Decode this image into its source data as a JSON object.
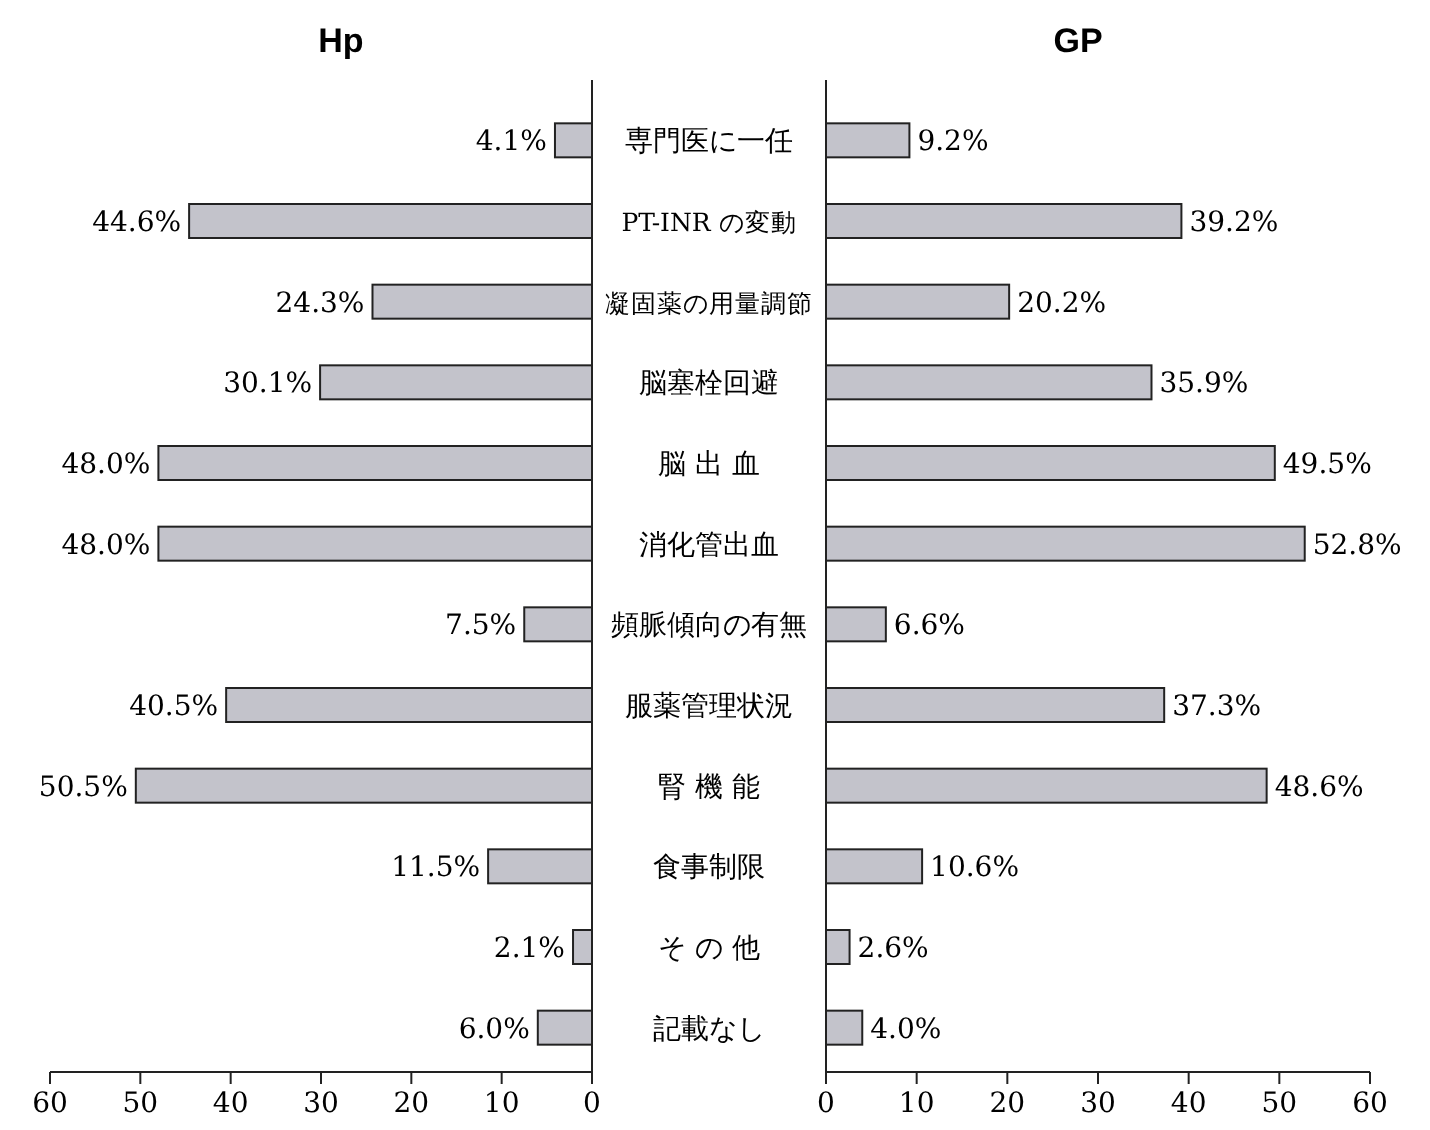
{
  "chart_data": [
    {
      "type": "bar",
      "orientation": "horizontal",
      "title": "Hp",
      "categories": [
        "専門医に一任",
        "PT-INR の変動",
        "凝固薬の用量調節",
        "脳塞栓回避",
        "脳 出 血",
        "消化管出血",
        "頻脈傾向の有無",
        "服薬管理状況",
        "腎 機 能",
        "食事制限",
        "そ の 他",
        "記載なし"
      ],
      "values": [
        4.1,
        44.6,
        24.3,
        30.1,
        48.0,
        48.0,
        7.5,
        40.5,
        50.5,
        11.5,
        2.1,
        6.0
      ],
      "value_labels": [
        "4.1%",
        "44.6%",
        "24.3%",
        "30.1%",
        "48.0%",
        "48.0%",
        "7.5%",
        "40.5%",
        "50.5%",
        "11.5%",
        "2.1%",
        "6.0%"
      ],
      "color": "#c3c3cb",
      "xlim": [
        60,
        0
      ],
      "xticks": [
        60,
        50,
        40,
        30,
        20,
        10,
        0
      ],
      "grid": false
    },
    {
      "type": "bar",
      "orientation": "horizontal",
      "title": "GP",
      "categories": [
        null,
        null,
        null,
        null,
        null,
        null,
        null,
        null,
        null,
        null,
        null,
        null
      ],
      "values": [
        9.2,
        39.2,
        20.2,
        35.9,
        49.5,
        52.8,
        6.6,
        37.3,
        48.6,
        10.6,
        2.6,
        4.0
      ],
      "value_labels": [
        "9.2%",
        "39.2%",
        "20.2%",
        "35.9%",
        "49.5%",
        "52.8%",
        "6.6%",
        "37.3%",
        "48.6%",
        "10.6%",
        "2.6%",
        "4.0%"
      ],
      "color": "#c3c3cb",
      "xlim": [
        0,
        60
      ],
      "xticks": [
        0,
        10,
        20,
        30,
        40,
        50,
        60
      ],
      "grid": false,
      "tick_labels": "x"
    }
  ]
}
